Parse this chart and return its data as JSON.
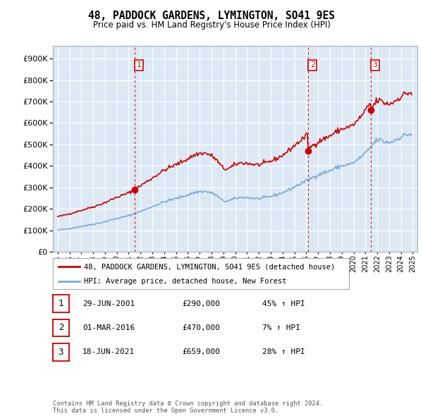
{
  "title": "48, PADDOCK GARDENS, LYMINGTON, SO41 9ES",
  "subtitle": "Price paid vs. HM Land Registry's House Price Index (HPI)",
  "yticks": [
    0,
    100000,
    200000,
    300000,
    400000,
    500000,
    600000,
    700000,
    800000,
    900000
  ],
  "xlim_start": 1994.6,
  "xlim_end": 2025.4,
  "ylim": [
    0,
    960000
  ],
  "sale_dates": [
    2001.495,
    2016.165,
    2021.46
  ],
  "sale_prices": [
    290000,
    470000,
    659000
  ],
  "sale_labels": [
    "1",
    "2",
    "3"
  ],
  "legend_property": "48, PADDOCK GARDENS, LYMINGTON, SO41 9ES (detached house)",
  "legend_hpi": "HPI: Average price, detached house, New Forest",
  "property_color": "#cc0000",
  "hpi_color": "#7aaadd",
  "vline_color": "#cc0000",
  "chart_bg": "#dce9f5",
  "table_data": [
    {
      "num": "1",
      "date": "29-JUN-2001",
      "price": "£290,000",
      "change": "45% ↑ HPI"
    },
    {
      "num": "2",
      "date": "01-MAR-2016",
      "price": "£470,000",
      "change": "7% ↑ HPI"
    },
    {
      "num": "3",
      "date": "18-JUN-2021",
      "price": "£659,000",
      "change": "28% ↑ HPI"
    }
  ],
  "footnote": "Contains HM Land Registry data © Crown copyright and database right 2024.\nThis data is licensed under the Open Government Licence v3.0.",
  "background_color": "#ffffff",
  "grid_color": "#ffffff",
  "xtick_years": [
    1995,
    1996,
    1997,
    1998,
    1999,
    2000,
    2001,
    2002,
    2003,
    2004,
    2005,
    2006,
    2007,
    2008,
    2009,
    2010,
    2011,
    2012,
    2013,
    2014,
    2015,
    2016,
    2017,
    2018,
    2019,
    2020,
    2021,
    2022,
    2023,
    2024,
    2025
  ]
}
